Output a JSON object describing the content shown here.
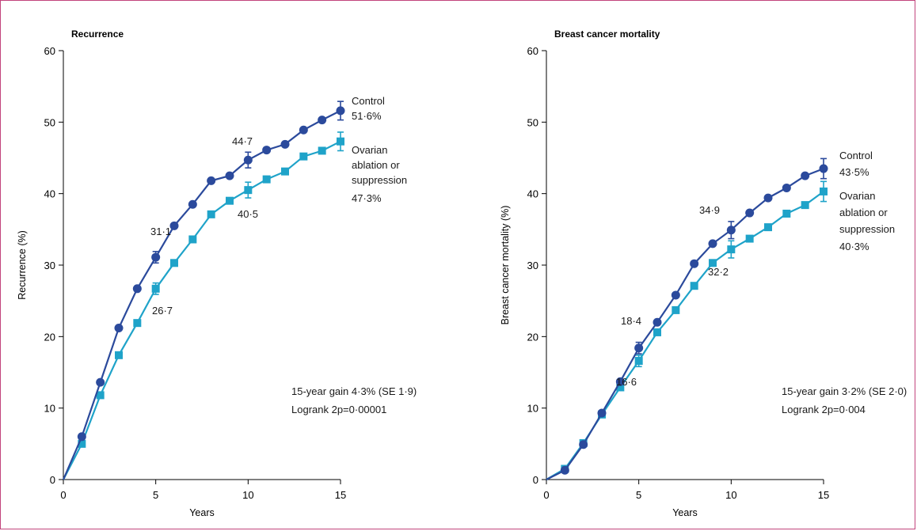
{
  "colors": {
    "control": "#2b4a9c",
    "treatment": "#1fa3c9",
    "border": "#c2447c",
    "axis": "#000000"
  },
  "chart_data": [
    {
      "type": "line",
      "title": "Recurrence",
      "xlabel": "Years",
      "ylabel": "Recurrence (%)",
      "xlim": [
        0,
        15
      ],
      "ylim": [
        0,
        60
      ],
      "xticks": [
        0,
        5,
        10,
        15
      ],
      "yticks": [
        0,
        10,
        20,
        30,
        40,
        50,
        60
      ],
      "x": [
        0,
        1,
        2,
        3,
        4,
        5,
        6,
        7,
        8,
        9,
        10,
        11,
        12,
        13,
        14,
        15
      ],
      "series": [
        {
          "name": "Control",
          "key": "control",
          "marker": "circle",
          "values": [
            0,
            6.0,
            13.6,
            21.2,
            26.7,
            31.1,
            35.5,
            38.5,
            41.8,
            42.5,
            44.7,
            46.1,
            46.9,
            48.9,
            50.3,
            51.6
          ],
          "error_at": [
            5,
            10,
            15
          ],
          "error_half": [
            0.8,
            1.1,
            1.3
          ],
          "label": [
            "Control",
            "51·6%"
          ]
        },
        {
          "name": "Ovarian ablation or suppression",
          "key": "treatment",
          "marker": "square",
          "values": [
            0,
            5.0,
            11.8,
            17.4,
            21.9,
            26.7,
            30.3,
            33.6,
            37.1,
            39.0,
            40.5,
            42.0,
            43.1,
            45.2,
            46.0,
            47.3
          ],
          "error_at": [
            5,
            10,
            15
          ],
          "error_half": [
            0.8,
            1.1,
            1.3
          ],
          "label": [
            "Ovarian",
            "ablation or",
            "suppression",
            "47·3%"
          ]
        }
      ],
      "annotations": [
        {
          "text": "31·1",
          "x": 5,
          "y": 31.1
        },
        {
          "text": "26·7",
          "x": 5,
          "y": 26.7
        },
        {
          "text": "44·7",
          "x": 10,
          "y": 44.7
        },
        {
          "text": "40·5",
          "x": 10,
          "y": 40.5
        }
      ],
      "stats": [
        "15-year gain 4·3% (SE 1·9)",
        "Logrank 2p=0·00001"
      ]
    },
    {
      "type": "line",
      "title": "Breast cancer mortality",
      "xlabel": "Years",
      "ylabel": "Breast cancer mortality (%)",
      "xlim": [
        0,
        15
      ],
      "ylim": [
        0,
        60
      ],
      "xticks": [
        0,
        5,
        10,
        15
      ],
      "yticks": [
        0,
        10,
        20,
        30,
        40,
        50,
        60
      ],
      "x": [
        0,
        1,
        2,
        3,
        4,
        5,
        6,
        7,
        8,
        9,
        10,
        11,
        12,
        13,
        14,
        15
      ],
      "series": [
        {
          "name": "Control",
          "key": "control",
          "marker": "circle",
          "values": [
            0,
            1.3,
            4.9,
            9.3,
            13.7,
            18.4,
            22.0,
            25.8,
            30.2,
            33.0,
            34.9,
            37.3,
            39.4,
            40.8,
            42.5,
            43.5
          ],
          "error_at": [
            5,
            10,
            15
          ],
          "error_half": [
            0.8,
            1.2,
            1.4
          ],
          "label": [
            "Control",
            "43·5%"
          ]
        },
        {
          "name": "Ovarian ablation or suppression",
          "key": "treatment",
          "marker": "square",
          "values": [
            0,
            1.5,
            5.1,
            9.1,
            12.9,
            16.6,
            20.6,
            23.7,
            27.1,
            30.3,
            32.2,
            33.7,
            35.3,
            37.2,
            38.4,
            40.3
          ],
          "error_at": [
            5,
            10,
            15
          ],
          "error_half": [
            0.8,
            1.2,
            1.4
          ],
          "label": [
            "Ovarian",
            "ablation or",
            "suppression",
            "40·3%"
          ]
        }
      ],
      "annotations": [
        {
          "text": "18·4",
          "x": 5,
          "y": 18.4
        },
        {
          "text": "16·6",
          "x": 5,
          "y": 16.6
        },
        {
          "text": "34·9",
          "x": 10,
          "y": 34.9
        },
        {
          "text": "32·2",
          "x": 10,
          "y": 32.2
        }
      ],
      "stats": [
        "15-year gain 3·2% (SE 2·0)",
        "Logrank 2p=0·004"
      ]
    }
  ]
}
